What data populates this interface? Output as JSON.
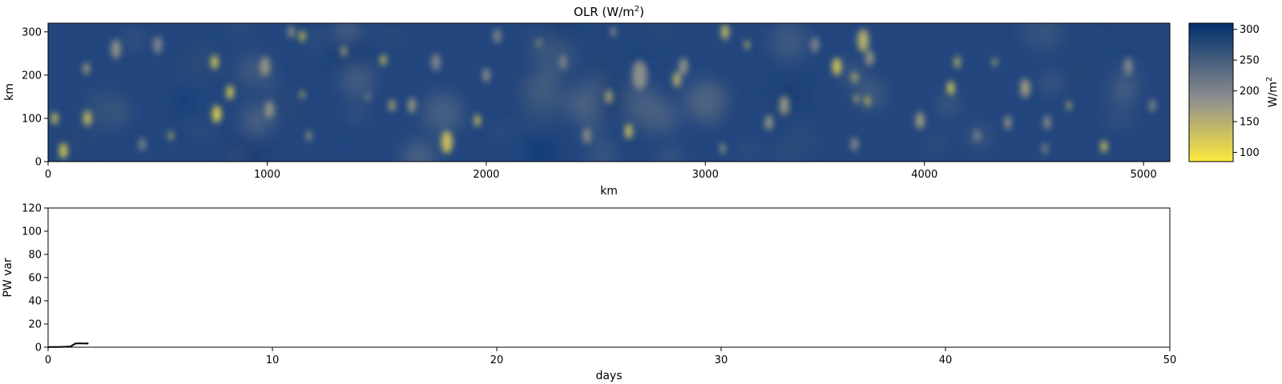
{
  "chart_data": [
    {
      "type": "heatmap",
      "title": "OLR (W/m",
      "title_superscript": "2",
      "title_suffix": ")",
      "xlabel": "km",
      "ylabel": "km",
      "xlim": [
        0,
        5120
      ],
      "ylim": [
        0,
        320
      ],
      "xticks": [
        "0",
        "1000",
        "2000",
        "3000",
        "4000",
        "5000"
      ],
      "yticks": [
        "0",
        "100",
        "200",
        "300"
      ],
      "colorbar": {
        "label": "W/m",
        "label_superscript": "2",
        "range": [
          85,
          310
        ],
        "ticks": [
          "100",
          "150",
          "200",
          "250",
          "300"
        ],
        "colors": [
          "#fde83d",
          "#8f8f8f",
          "#002f6c"
        ]
      },
      "blobs": [
        {
          "x": 30,
          "y": 100,
          "r": 14,
          "v": 110
        },
        {
          "x": 70,
          "y": 25,
          "r": 18,
          "v": 105
        },
        {
          "x": 180,
          "y": 100,
          "r": 18,
          "v": 125
        },
        {
          "x": 175,
          "y": 215,
          "r": 14,
          "v": 160
        },
        {
          "x": 310,
          "y": 260,
          "r": 22,
          "v": 175
        },
        {
          "x": 500,
          "y": 270,
          "r": 20,
          "v": 190
        },
        {
          "x": 560,
          "y": 60,
          "r": 10,
          "v": 120
        },
        {
          "x": 760,
          "y": 230,
          "r": 16,
          "v": 110
        },
        {
          "x": 770,
          "y": 110,
          "r": 20,
          "v": 100
        },
        {
          "x": 830,
          "y": 160,
          "r": 16,
          "v": 100
        },
        {
          "x": 990,
          "y": 220,
          "r": 22,
          "v": 170
        },
        {
          "x": 1010,
          "y": 120,
          "r": 20,
          "v": 170
        },
        {
          "x": 1160,
          "y": 290,
          "r": 12,
          "v": 100
        },
        {
          "x": 1160,
          "y": 155,
          "r": 9,
          "v": 120
        },
        {
          "x": 1350,
          "y": 255,
          "r": 12,
          "v": 150
        },
        {
          "x": 1460,
          "y": 150,
          "r": 8,
          "v": 150
        },
        {
          "x": 1530,
          "y": 235,
          "r": 12,
          "v": 100
        },
        {
          "x": 1570,
          "y": 130,
          "r": 14,
          "v": 150
        },
        {
          "x": 1660,
          "y": 130,
          "r": 18,
          "v": 170
        },
        {
          "x": 1820,
          "y": 45,
          "r": 26,
          "v": 120
        },
        {
          "x": 1770,
          "y": 230,
          "r": 20,
          "v": 190
        },
        {
          "x": 1960,
          "y": 95,
          "r": 14,
          "v": 120
        },
        {
          "x": 2000,
          "y": 200,
          "r": 16,
          "v": 175
        },
        {
          "x": 2240,
          "y": 275,
          "r": 8,
          "v": 120
        },
        {
          "x": 2350,
          "y": 230,
          "r": 16,
          "v": 190
        },
        {
          "x": 2460,
          "y": 60,
          "r": 18,
          "v": 180
        },
        {
          "x": 2560,
          "y": 150,
          "r": 16,
          "v": 150
        },
        {
          "x": 2650,
          "y": 70,
          "r": 18,
          "v": 130
        },
        {
          "x": 2700,
          "y": 200,
          "r": 34,
          "v": 180
        },
        {
          "x": 2870,
          "y": 190,
          "r": 18,
          "v": 140
        },
        {
          "x": 2900,
          "y": 220,
          "r": 20,
          "v": 175
        },
        {
          "x": 3090,
          "y": 300,
          "r": 18,
          "v": 130
        },
        {
          "x": 3190,
          "y": 270,
          "r": 10,
          "v": 110
        },
        {
          "x": 3290,
          "y": 90,
          "r": 18,
          "v": 170
        },
        {
          "x": 3360,
          "y": 130,
          "r": 22,
          "v": 170
        },
        {
          "x": 3600,
          "y": 220,
          "r": 20,
          "v": 110
        },
        {
          "x": 3680,
          "y": 195,
          "r": 12,
          "v": 130
        },
        {
          "x": 3720,
          "y": 280,
          "r": 26,
          "v": 140
        },
        {
          "x": 3750,
          "y": 240,
          "r": 18,
          "v": 165
        },
        {
          "x": 3690,
          "y": 145,
          "r": 9,
          "v": 110
        },
        {
          "x": 3740,
          "y": 140,
          "r": 11,
          "v": 105
        },
        {
          "x": 3680,
          "y": 40,
          "r": 16,
          "v": 180
        },
        {
          "x": 3980,
          "y": 95,
          "r": 20,
          "v": 165
        },
        {
          "x": 4120,
          "y": 170,
          "r": 16,
          "v": 110
        },
        {
          "x": 4150,
          "y": 230,
          "r": 14,
          "v": 140
        },
        {
          "x": 4320,
          "y": 230,
          "r": 9,
          "v": 120
        },
        {
          "x": 4380,
          "y": 90,
          "r": 16,
          "v": 175
        },
        {
          "x": 4460,
          "y": 170,
          "r": 22,
          "v": 165
        },
        {
          "x": 4660,
          "y": 130,
          "r": 10,
          "v": 120
        },
        {
          "x": 4560,
          "y": 90,
          "r": 16,
          "v": 180
        },
        {
          "x": 4820,
          "y": 35,
          "r": 14,
          "v": 110
        },
        {
          "x": 4930,
          "y": 220,
          "r": 20,
          "v": 190
        },
        {
          "x": 4550,
          "y": 30,
          "r": 12,
          "v": 180
        },
        {
          "x": 4240,
          "y": 60,
          "r": 14,
          "v": 190
        },
        {
          "x": 3500,
          "y": 270,
          "r": 18,
          "v": 190
        },
        {
          "x": 2050,
          "y": 290,
          "r": 16,
          "v": 180
        },
        {
          "x": 1190,
          "y": 60,
          "r": 12,
          "v": 170
        },
        {
          "x": 430,
          "y": 40,
          "r": 14,
          "v": 180
        },
        {
          "x": 5040,
          "y": 130,
          "r": 14,
          "v": 180
        },
        {
          "x": 3080,
          "y": 30,
          "r": 12,
          "v": 170
        },
        {
          "x": 1110,
          "y": 300,
          "r": 14,
          "v": 170
        },
        {
          "x": 2580,
          "y": 300,
          "r": 12,
          "v": 180
        }
      ]
    },
    {
      "type": "line",
      "xlabel": "days",
      "ylabel": "PW var",
      "xlim": [
        0,
        50
      ],
      "ylim": [
        0,
        120
      ],
      "xticks": [
        "0",
        "10",
        "20",
        "30",
        "40",
        "50"
      ],
      "yticks": [
        "0",
        "20",
        "40",
        "60",
        "80",
        "100",
        "120"
      ],
      "x": [
        0,
        0.2,
        0.4,
        0.6,
        0.8,
        1.0,
        1.1,
        1.2,
        1.3,
        1.4,
        1.5,
        1.6,
        1.7,
        1.8
      ],
      "y": [
        0.1,
        0.2,
        0.2,
        0.3,
        0.4,
        0.6,
        1.8,
        3.0,
        3.3,
        3.4,
        3.3,
        3.2,
        3.3,
        3.2
      ],
      "color": "#000000"
    }
  ]
}
